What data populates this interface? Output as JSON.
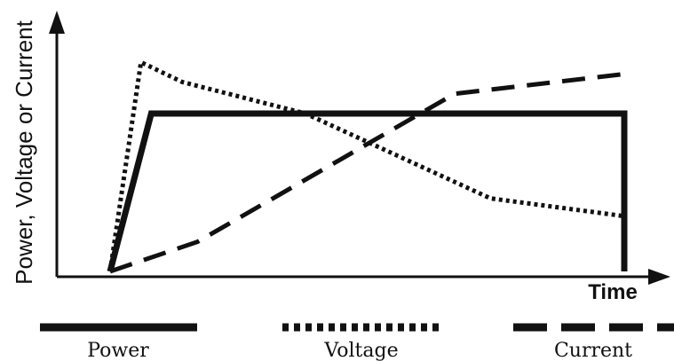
{
  "chart_data": {
    "type": "line",
    "title": "",
    "xlabel": "Time",
    "ylabel": "Power, Voltage or Current",
    "xlim": [
      0,
      100
    ],
    "ylim": [
      0,
      100
    ],
    "grid": false,
    "legend_position": "bottom",
    "series": [
      {
        "name": "Power",
        "style": "solid",
        "color": "#111111",
        "points": [
          [
            0,
            0
          ],
          [
            8,
            80
          ],
          [
            100,
            80
          ],
          [
            100,
            0
          ]
        ]
      },
      {
        "name": "Voltage",
        "style": "dotted",
        "color": "#111111",
        "points": [
          [
            0,
            0
          ],
          [
            6,
            106
          ],
          [
            14,
            96
          ],
          [
            38,
            80
          ],
          [
            74,
            37
          ],
          [
            100,
            28
          ]
        ]
      },
      {
        "name": "Current",
        "style": "dashed",
        "color": "#111111",
        "points": [
          [
            0,
            0
          ],
          [
            17,
            15
          ],
          [
            67,
            90
          ],
          [
            100,
            100
          ]
        ]
      }
    ]
  }
}
